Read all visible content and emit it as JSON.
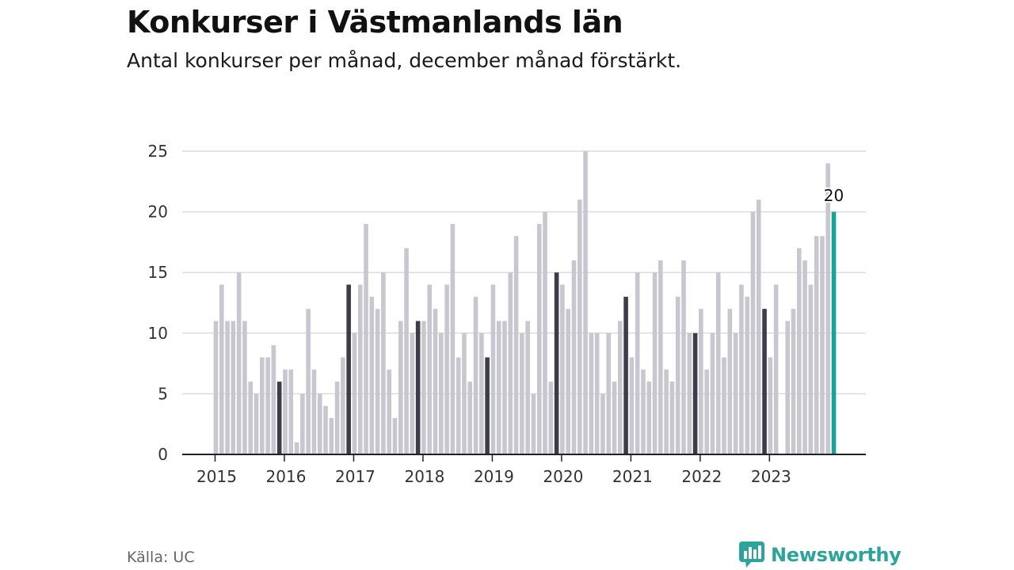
{
  "header": {
    "title": "Konkurser i Västmanlands län",
    "subtitle": "Antal konkurser per månad, december månad förstärkt."
  },
  "footer": {
    "source": "Källa: UC",
    "brand": "Newsworthy",
    "brand_icon": "newsworthy-logo-icon"
  },
  "colors": {
    "bar": "#c8c7d0",
    "december": "#3d3c49",
    "latest": "#1aa396",
    "grid": "#dcdcdc",
    "axis": "#222222",
    "brand": "#2ba59b"
  },
  "chart_data": {
    "type": "bar",
    "ylim": [
      0,
      25
    ],
    "yticks": [
      0,
      5,
      10,
      15,
      20,
      25
    ],
    "grid": true,
    "start": "2015-01",
    "highlight": "december",
    "latest_label": "20",
    "year_labels": [
      "2015",
      "2016",
      "2017",
      "2018",
      "2019",
      "2020",
      "2021",
      "2022",
      "2023"
    ],
    "series": [
      {
        "values": [
          11,
          14,
          11,
          11,
          15,
          11,
          6,
          5,
          8,
          8,
          9,
          6,
          7,
          7,
          1,
          5,
          12,
          7,
          5,
          4,
          3,
          6,
          8,
          14,
          10,
          14,
          19,
          13,
          12,
          15,
          7,
          3,
          11,
          17,
          10,
          11,
          11,
          14,
          12,
          10,
          14,
          19,
          8,
          10,
          6,
          13,
          10,
          8,
          14,
          11,
          11,
          15,
          18,
          10,
          11,
          5,
          19,
          20,
          6,
          15,
          14,
          12,
          16,
          21,
          25,
          10,
          10,
          5,
          10,
          6,
          11,
          13,
          8,
          15,
          7,
          6,
          15,
          16,
          7,
          6,
          13,
          16,
          10,
          10,
          12,
          7,
          10,
          15,
          8,
          12,
          10,
          14,
          13,
          20,
          21,
          12,
          8,
          14,
          0,
          11,
          12,
          17,
          16,
          14,
          18,
          18,
          24,
          20
        ]
      }
    ]
  }
}
